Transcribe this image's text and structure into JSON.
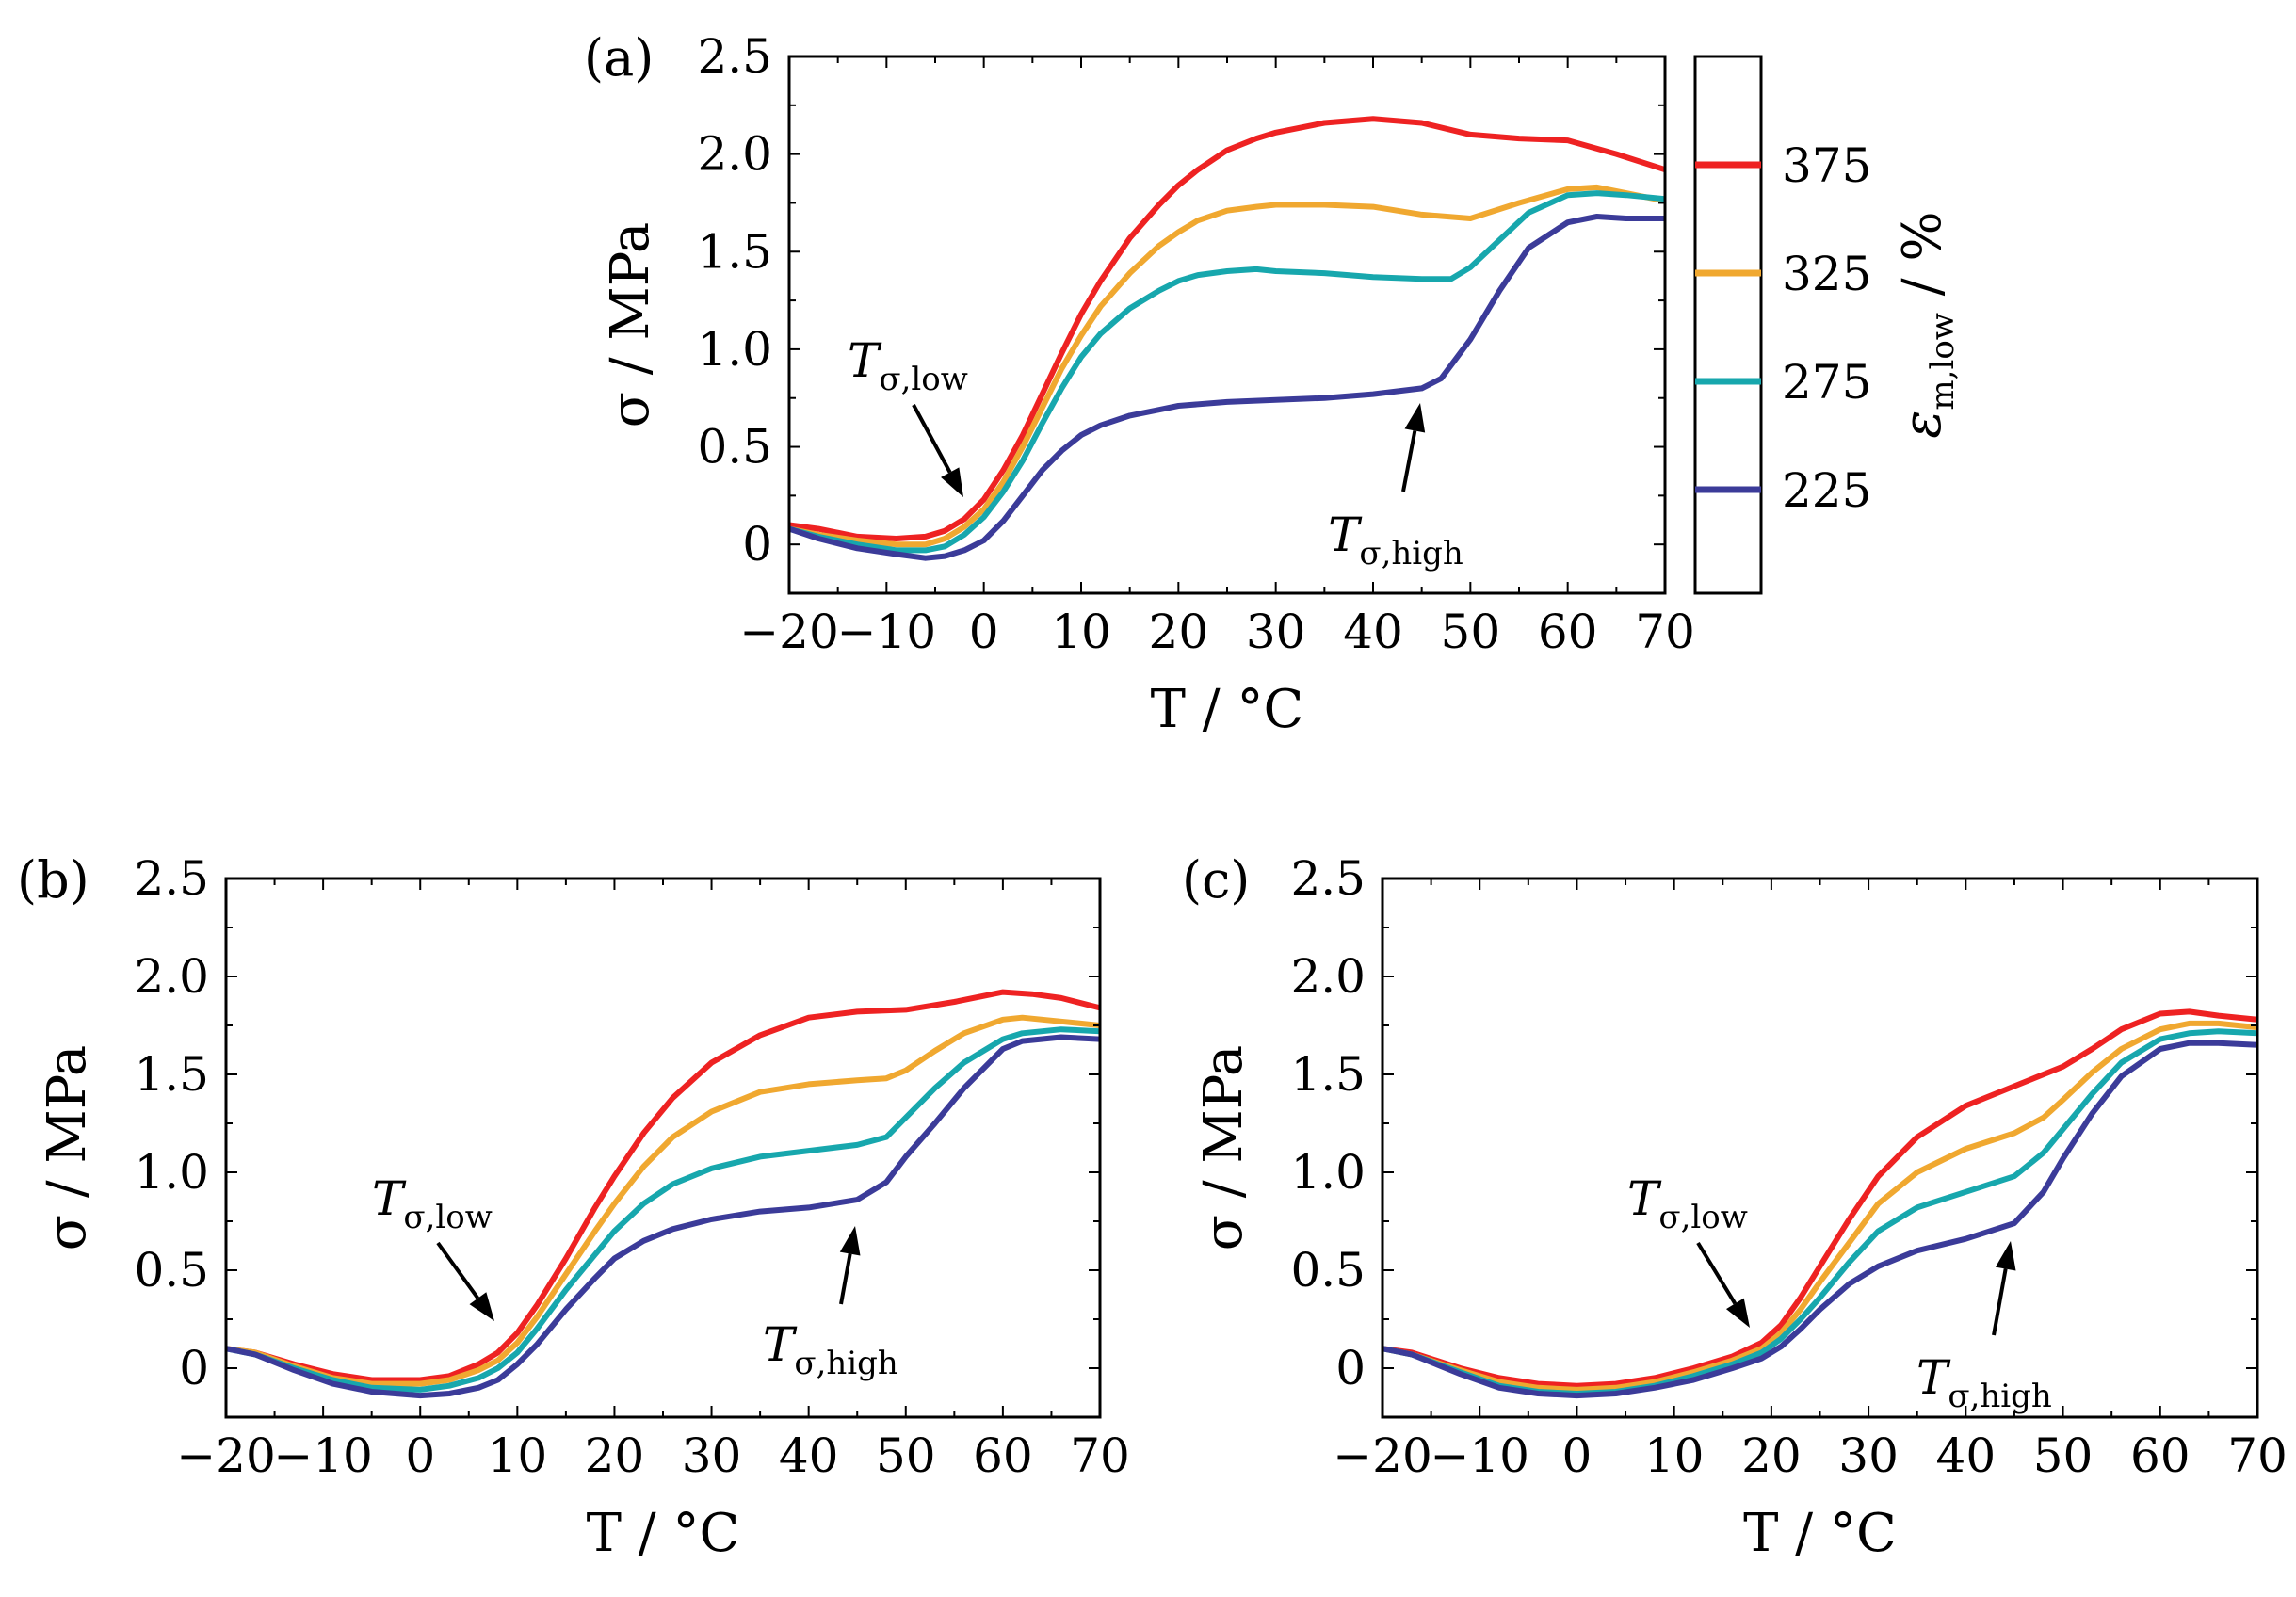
{
  "colors": {
    "375": "#ee2222",
    "325": "#f0a830",
    "275": "#17a7ad",
    "225": "#3b3b99"
  },
  "legend": {
    "title_main": "ε",
    "title_sub": "m,low",
    "title_unit": " / %",
    "entries": [
      {
        "label": "375",
        "color_key": "375"
      },
      {
        "label": "325",
        "color_key": "325"
      },
      {
        "label": "275",
        "color_key": "275"
      },
      {
        "label": "225",
        "color_key": "225"
      }
    ]
  },
  "chart_data": [
    {
      "type": "line",
      "panel": "(a)",
      "xlabel": "T / °C",
      "ylabel": "σ / MPa",
      "xlim": [
        -20,
        70
      ],
      "ylim": [
        -0.25,
        2.5
      ],
      "xticks": [
        -20,
        -10,
        0,
        10,
        20,
        30,
        40,
        50,
        60,
        70
      ],
      "xtick_labels": [
        "−20",
        "−10",
        "0",
        "10",
        "20",
        "30",
        "40",
        "50",
        "60",
        "70"
      ],
      "yticks": [
        0,
        0.5,
        1.0,
        1.5,
        2.0,
        2.5
      ],
      "ytick_labels": [
        "0",
        "0.5",
        "1.0",
        "1.5",
        "2.0",
        "2.5"
      ],
      "annotations": [
        {
          "main": "T",
          "sub": "σ,low",
          "point": [
            -2,
            0.22
          ]
        },
        {
          "main": "T",
          "sub": "σ,high",
          "point": [
            45,
            0.78
          ]
        }
      ],
      "series": [
        {
          "name": "375",
          "x": [
            -20,
            -17,
            -13,
            -9,
            -6,
            -4,
            -2,
            0,
            2,
            4,
            6,
            8,
            10,
            12,
            15,
            18,
            20,
            22,
            25,
            28,
            30,
            35,
            40,
            45,
            50,
            55,
            60,
            65,
            70
          ],
          "y": [
            0.1,
            0.08,
            0.04,
            0.03,
            0.04,
            0.07,
            0.13,
            0.23,
            0.38,
            0.56,
            0.77,
            0.98,
            1.18,
            1.35,
            1.57,
            1.74,
            1.84,
            1.92,
            2.02,
            2.08,
            2.11,
            2.16,
            2.18,
            2.16,
            2.1,
            2.08,
            2.07,
            2.0,
            1.92
          ]
        },
        {
          "name": "325",
          "x": [
            -20,
            -17,
            -13,
            -9,
            -6,
            -4,
            -2,
            0,
            2,
            4,
            6,
            8,
            10,
            12,
            15,
            18,
            20,
            22,
            25,
            28,
            30,
            35,
            40,
            45,
            50,
            55,
            60,
            63,
            66,
            70
          ],
          "y": [
            0.08,
            0.05,
            0.02,
            0.0,
            0.0,
            0.03,
            0.09,
            0.18,
            0.32,
            0.5,
            0.7,
            0.9,
            1.07,
            1.22,
            1.39,
            1.53,
            1.6,
            1.66,
            1.71,
            1.73,
            1.74,
            1.74,
            1.73,
            1.69,
            1.67,
            1.75,
            1.82,
            1.83,
            1.8,
            1.76
          ]
        },
        {
          "name": "275",
          "x": [
            -20,
            -17,
            -13,
            -9,
            -6,
            -4,
            -2,
            0,
            2,
            4,
            6,
            8,
            10,
            12,
            15,
            18,
            20,
            22,
            25,
            28,
            30,
            35,
            40,
            45,
            48,
            50,
            53,
            56,
            60,
            63,
            66,
            70
          ],
          "y": [
            0.08,
            0.04,
            0.0,
            -0.03,
            -0.03,
            -0.01,
            0.05,
            0.14,
            0.27,
            0.43,
            0.62,
            0.8,
            0.96,
            1.08,
            1.21,
            1.3,
            1.35,
            1.38,
            1.4,
            1.41,
            1.4,
            1.39,
            1.37,
            1.36,
            1.36,
            1.42,
            1.56,
            1.7,
            1.79,
            1.8,
            1.79,
            1.77
          ]
        },
        {
          "name": "225",
          "x": [
            -20,
            -17,
            -13,
            -9,
            -6,
            -4,
            -2,
            0,
            2,
            4,
            6,
            8,
            10,
            12,
            15,
            18,
            20,
            25,
            30,
            35,
            40,
            45,
            47,
            50,
            53,
            56,
            60,
            63,
            66,
            70
          ],
          "y": [
            0.08,
            0.03,
            -0.02,
            -0.05,
            -0.07,
            -0.06,
            -0.03,
            0.02,
            0.12,
            0.25,
            0.38,
            0.48,
            0.56,
            0.61,
            0.66,
            0.69,
            0.71,
            0.73,
            0.74,
            0.75,
            0.77,
            0.8,
            0.85,
            1.05,
            1.3,
            1.52,
            1.65,
            1.68,
            1.67,
            1.67
          ]
        }
      ]
    },
    {
      "type": "line",
      "panel": "(b)",
      "xlabel": "T / °C",
      "ylabel": "σ / MPa",
      "xlim": [
        -20,
        70
      ],
      "ylim": [
        -0.25,
        2.5
      ],
      "xticks": [
        -20,
        -10,
        0,
        10,
        20,
        30,
        40,
        50,
        60,
        70
      ],
      "xtick_labels": [
        "−20",
        "−10",
        "0",
        "10",
        "20",
        "30",
        "40",
        "50",
        "60",
        "70"
      ],
      "yticks": [
        0,
        0.5,
        1.0,
        1.5,
        2.0,
        2.5
      ],
      "ytick_labels": [
        "0",
        "0.5",
        "1.0",
        "1.5",
        "2.0",
        "2.5"
      ],
      "annotations": [
        {
          "main": "T",
          "sub": "σ,low",
          "point": [
            8,
            0.12
          ]
        },
        {
          "main": "T",
          "sub": "σ,high",
          "point": [
            45,
            0.86
          ]
        }
      ],
      "series": [
        {
          "name": "375",
          "x": [
            -20,
            -17,
            -13,
            -9,
            -5,
            0,
            3,
            6,
            8,
            10,
            12,
            15,
            18,
            20,
            23,
            26,
            30,
            35,
            40,
            45,
            50,
            55,
            60,
            63,
            66,
            70
          ],
          "y": [
            0.1,
            0.08,
            0.02,
            -0.03,
            -0.06,
            -0.06,
            -0.04,
            0.02,
            0.08,
            0.18,
            0.32,
            0.56,
            0.82,
            0.98,
            1.2,
            1.38,
            1.56,
            1.7,
            1.79,
            1.82,
            1.83,
            1.87,
            1.92,
            1.91,
            1.89,
            1.84
          ]
        },
        {
          "name": "325",
          "x": [
            -20,
            -17,
            -13,
            -9,
            -5,
            0,
            3,
            6,
            8,
            10,
            12,
            15,
            18,
            20,
            23,
            26,
            30,
            35,
            40,
            45,
            48,
            50,
            53,
            56,
            60,
            62,
            66,
            70
          ],
          "y": [
            0.1,
            0.08,
            0.01,
            -0.05,
            -0.08,
            -0.08,
            -0.06,
            -0.01,
            0.04,
            0.13,
            0.26,
            0.48,
            0.7,
            0.84,
            1.03,
            1.18,
            1.31,
            1.41,
            1.45,
            1.47,
            1.48,
            1.52,
            1.62,
            1.71,
            1.78,
            1.79,
            1.77,
            1.75
          ]
        },
        {
          "name": "275",
          "x": [
            -20,
            -17,
            -13,
            -9,
            -5,
            0,
            3,
            6,
            8,
            10,
            12,
            15,
            18,
            20,
            23,
            26,
            30,
            35,
            40,
            45,
            48,
            50,
            53,
            56,
            60,
            62,
            66,
            70
          ],
          "y": [
            0.1,
            0.07,
            0.0,
            -0.06,
            -0.1,
            -0.11,
            -0.09,
            -0.05,
            0.0,
            0.08,
            0.2,
            0.4,
            0.58,
            0.7,
            0.84,
            0.94,
            1.02,
            1.08,
            1.11,
            1.14,
            1.18,
            1.28,
            1.43,
            1.56,
            1.68,
            1.71,
            1.73,
            1.72
          ]
        },
        {
          "name": "225",
          "x": [
            -20,
            -17,
            -13,
            -9,
            -5,
            0,
            3,
            6,
            8,
            10,
            12,
            15,
            18,
            20,
            23,
            26,
            30,
            35,
            40,
            45,
            48,
            50,
            53,
            56,
            60,
            62,
            66,
            70
          ],
          "y": [
            0.1,
            0.07,
            -0.01,
            -0.08,
            -0.12,
            -0.14,
            -0.13,
            -0.1,
            -0.06,
            0.02,
            0.12,
            0.3,
            0.46,
            0.56,
            0.65,
            0.71,
            0.76,
            0.8,
            0.82,
            0.86,
            0.95,
            1.08,
            1.25,
            1.43,
            1.63,
            1.67,
            1.69,
            1.68
          ]
        }
      ]
    },
    {
      "type": "line",
      "panel": "(c)",
      "xlabel": "T / °C",
      "ylabel": "σ / MPa",
      "xlim": [
        -20,
        70
      ],
      "ylim": [
        -0.25,
        2.5
      ],
      "xticks": [
        -20,
        -10,
        0,
        10,
        20,
        30,
        40,
        50,
        60,
        70
      ],
      "xtick_labels": [
        "−20",
        "−10",
        "0",
        "10",
        "20",
        "30",
        "40",
        "50",
        "60",
        "70"
      ],
      "yticks": [
        0,
        0.5,
        1.0,
        1.5,
        2.0,
        2.5
      ],
      "ytick_labels": [
        "0",
        "0.5",
        "1.0",
        "1.5",
        "2.0",
        "2.5"
      ],
      "annotations": [
        {
          "main": "T",
          "sub": "σ,low",
          "point": [
            18,
            0.1
          ]
        },
        {
          "main": "T",
          "sub": "σ,high",
          "point": [
            44,
            0.7
          ]
        }
      ],
      "series": [
        {
          "name": "375",
          "x": [
            -20,
            -17,
            -12,
            -8,
            -4,
            0,
            4,
            8,
            12,
            16,
            19,
            21,
            23,
            25,
            28,
            31,
            35,
            40,
            45,
            50,
            53,
            56,
            60,
            63,
            66,
            70
          ],
          "y": [
            0.1,
            0.08,
            0.0,
            -0.05,
            -0.08,
            -0.09,
            -0.08,
            -0.05,
            0.0,
            0.06,
            0.13,
            0.22,
            0.36,
            0.52,
            0.76,
            0.98,
            1.18,
            1.34,
            1.44,
            1.54,
            1.63,
            1.73,
            1.81,
            1.82,
            1.8,
            1.78
          ]
        },
        {
          "name": "325",
          "x": [
            -20,
            -17,
            -12,
            -8,
            -4,
            0,
            4,
            8,
            12,
            16,
            19,
            21,
            23,
            25,
            28,
            31,
            35,
            40,
            45,
            48,
            50,
            53,
            56,
            60,
            63,
            66,
            70
          ],
          "y": [
            0.1,
            0.07,
            -0.01,
            -0.07,
            -0.1,
            -0.11,
            -0.1,
            -0.07,
            -0.02,
            0.04,
            0.1,
            0.18,
            0.3,
            0.44,
            0.64,
            0.84,
            1.0,
            1.12,
            1.2,
            1.28,
            1.37,
            1.51,
            1.63,
            1.73,
            1.76,
            1.76,
            1.74
          ]
        },
        {
          "name": "275",
          "x": [
            -20,
            -17,
            -12,
            -8,
            -4,
            0,
            4,
            8,
            12,
            16,
            19,
            21,
            23,
            25,
            28,
            31,
            35,
            40,
            45,
            48,
            50,
            53,
            56,
            60,
            63,
            66,
            70
          ],
          "y": [
            0.1,
            0.07,
            -0.02,
            -0.09,
            -0.12,
            -0.13,
            -0.12,
            -0.09,
            -0.04,
            0.02,
            0.08,
            0.15,
            0.25,
            0.36,
            0.54,
            0.7,
            0.82,
            0.9,
            0.98,
            1.1,
            1.22,
            1.4,
            1.56,
            1.68,
            1.71,
            1.72,
            1.71
          ]
        },
        {
          "name": "225",
          "x": [
            -20,
            -17,
            -12,
            -8,
            -4,
            0,
            4,
            8,
            12,
            16,
            19,
            21,
            23,
            25,
            28,
            31,
            35,
            40,
            45,
            48,
            50,
            53,
            56,
            60,
            63,
            66,
            70
          ],
          "y": [
            0.1,
            0.07,
            -0.03,
            -0.1,
            -0.13,
            -0.14,
            -0.13,
            -0.1,
            -0.06,
            0.0,
            0.05,
            0.11,
            0.2,
            0.3,
            0.43,
            0.52,
            0.6,
            0.66,
            0.74,
            0.9,
            1.07,
            1.3,
            1.49,
            1.63,
            1.66,
            1.66,
            1.65
          ]
        }
      ]
    }
  ]
}
